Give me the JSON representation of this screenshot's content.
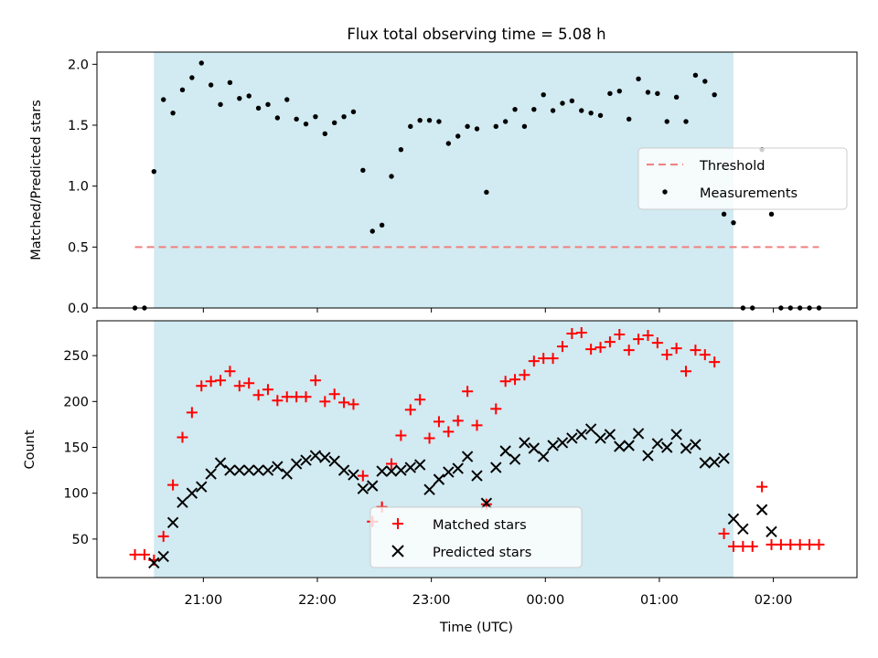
{
  "title": "Flux total observing time = 5.08 h",
  "colors": {
    "shade": "#add8e6",
    "threshold": "#f08080",
    "matched": "#ff0000",
    "predicted": "#000000",
    "measure": "#000000"
  },
  "chart_data": [
    {
      "type": "scatter",
      "ylabel": "Matched/Predicted stars",
      "ylim": [
        0,
        2.1
      ],
      "yticks": [
        "0.0",
        "0.5",
        "1.0",
        "1.5",
        "2.0"
      ],
      "observing_window": [
        "20:34",
        "01:39"
      ],
      "threshold": {
        "value": 0.5,
        "x_range": [
          "20:24",
          "02:24"
        ]
      },
      "legend": {
        "position": "center-right",
        "entries": [
          "Threshold",
          "Measurements"
        ]
      },
      "series": [
        {
          "name": "Measurements",
          "marker": "dot",
          "x": [
            "20:24",
            "20:29",
            "20:34",
            "20:39",
            "20:44",
            "20:49",
            "20:54",
            "20:59",
            "21:04",
            "21:09",
            "21:14",
            "21:19",
            "21:24",
            "21:29",
            "21:34",
            "21:39",
            "21:44",
            "21:49",
            "21:54",
            "21:59",
            "22:04",
            "22:09",
            "22:14",
            "22:19",
            "22:24",
            "22:29",
            "22:34",
            "22:39",
            "22:44",
            "22:49",
            "22:54",
            "22:59",
            "23:04",
            "23:09",
            "23:14",
            "23:19",
            "23:24",
            "23:29",
            "23:34",
            "23:39",
            "23:44",
            "23:49",
            "23:54",
            "23:59",
            "00:04",
            "00:09",
            "00:14",
            "00:19",
            "00:24",
            "00:29",
            "00:34",
            "00:39",
            "00:44",
            "00:49",
            "00:54",
            "00:59",
            "01:04",
            "01:09",
            "01:14",
            "01:19",
            "01:24",
            "01:29",
            "01:34",
            "01:39",
            "01:44",
            "01:49",
            "01:54",
            "01:59",
            "02:04",
            "02:09",
            "02:14",
            "02:19",
            "02:24"
          ],
          "y": [
            0,
            0,
            1.12,
            1.71,
            1.6,
            1.79,
            1.89,
            2.01,
            1.83,
            1.67,
            1.85,
            1.72,
            1.74,
            1.64,
            1.67,
            1.56,
            1.71,
            1.55,
            1.51,
            1.57,
            1.43,
            1.52,
            1.57,
            1.61,
            1.13,
            0.63,
            0.68,
            1.08,
            1.3,
            1.49,
            1.54,
            1.54,
            1.53,
            1.35,
            1.41,
            1.49,
            1.47,
            0.95,
            1.49,
            1.53,
            1.63,
            1.49,
            1.63,
            1.75,
            1.62,
            1.68,
            1.7,
            1.62,
            1.6,
            1.58,
            1.76,
            1.78,
            1.55,
            1.88,
            1.77,
            1.76,
            1.53,
            1.73,
            1.53,
            1.91,
            1.86,
            1.75,
            0.77,
            0.7,
            0,
            0,
            1.3,
            0.77,
            0,
            0,
            0,
            0,
            0
          ]
        }
      ]
    },
    {
      "type": "scatter",
      "ylabel": "Count",
      "xlabel": "Time (UTC)",
      "ylim": [
        8,
        288
      ],
      "yticks": [
        "50",
        "100",
        "150",
        "200",
        "250"
      ],
      "xticks": [
        "21:00",
        "22:00",
        "23:00",
        "00:00",
        "01:00",
        "02:00"
      ],
      "legend": {
        "position": "bottom-center",
        "entries": [
          "Matched stars",
          "Predicted stars"
        ]
      },
      "series": [
        {
          "name": "Matched stars",
          "marker": "plus",
          "x": [
            "20:24",
            "20:29",
            "20:34",
            "20:39",
            "20:44",
            "20:49",
            "20:54",
            "20:59",
            "21:04",
            "21:09",
            "21:14",
            "21:19",
            "21:24",
            "21:29",
            "21:34",
            "21:39",
            "21:44",
            "21:49",
            "21:54",
            "21:59",
            "22:04",
            "22:09",
            "22:14",
            "22:19",
            "22:24",
            "22:29",
            "22:34",
            "22:39",
            "22:44",
            "22:49",
            "22:54",
            "22:59",
            "23:04",
            "23:09",
            "23:14",
            "23:19",
            "23:24",
            "23:29",
            "23:34",
            "23:39",
            "23:44",
            "23:49",
            "23:54",
            "23:59",
            "00:04",
            "00:09",
            "00:14",
            "00:19",
            "00:24",
            "00:29",
            "00:34",
            "00:39",
            "00:44",
            "00:49",
            "00:54",
            "00:59",
            "01:04",
            "01:09",
            "01:14",
            "01:19",
            "01:24",
            "01:29",
            "01:34",
            "01:39",
            "01:44",
            "01:49",
            "01:54",
            "01:59",
            "02:04",
            "02:09",
            "02:14",
            "02:19",
            "02:24"
          ],
          "y": [
            33,
            33,
            27,
            53,
            109,
            161,
            188,
            217,
            222,
            223,
            233,
            217,
            220,
            207,
            213,
            201,
            205,
            205,
            205,
            223,
            200,
            208,
            199,
            197,
            119,
            69,
            85,
            132,
            163,
            191,
            202,
            160,
            178,
            167,
            179,
            211,
            174,
            88,
            192,
            222,
            224,
            229,
            244,
            247,
            247,
            260,
            274,
            275,
            257,
            259,
            265,
            273,
            256,
            268,
            272,
            264,
            251,
            258,
            233,
            256,
            251,
            243,
            56,
            42,
            42,
            42,
            107,
            44,
            44,
            44,
            44,
            44,
            44
          ]
        },
        {
          "name": "Predicted stars",
          "marker": "x",
          "x": [
            "20:34",
            "20:39",
            "20:44",
            "20:49",
            "20:54",
            "20:59",
            "21:04",
            "21:09",
            "21:14",
            "21:19",
            "21:24",
            "21:29",
            "21:34",
            "21:39",
            "21:44",
            "21:49",
            "21:54",
            "21:59",
            "22:04",
            "22:09",
            "22:14",
            "22:19",
            "22:24",
            "22:29",
            "22:34",
            "22:39",
            "22:44",
            "22:49",
            "22:54",
            "22:59",
            "23:04",
            "23:09",
            "23:14",
            "23:19",
            "23:24",
            "23:29",
            "23:34",
            "23:39",
            "23:44",
            "23:49",
            "23:54",
            "23:59",
            "00:04",
            "00:09",
            "00:14",
            "00:19",
            "00:24",
            "00:29",
            "00:34",
            "00:39",
            "00:44",
            "00:49",
            "00:54",
            "00:59",
            "01:04",
            "01:09",
            "01:14",
            "01:19",
            "01:24",
            "01:29",
            "01:34",
            "01:39",
            "01:44",
            "01:49",
            "01:54",
            "01:59"
          ],
          "y": [
            24,
            31,
            68,
            90,
            100,
            107,
            121,
            133,
            125,
            125,
            125,
            125,
            125,
            129,
            121,
            132,
            136,
            141,
            139,
            135,
            125,
            120,
            105,
            108,
            124,
            124,
            125,
            128,
            131,
            104,
            115,
            123,
            127,
            140,
            119,
            89,
            128,
            146,
            137,
            155,
            149,
            140,
            152,
            155,
            160,
            164,
            170,
            160,
            164,
            151,
            152,
            165,
            141,
            154,
            150,
            164,
            149,
            153,
            133,
            134,
            138,
            72,
            61,
            null,
            82,
            58
          ]
        }
      ]
    }
  ]
}
